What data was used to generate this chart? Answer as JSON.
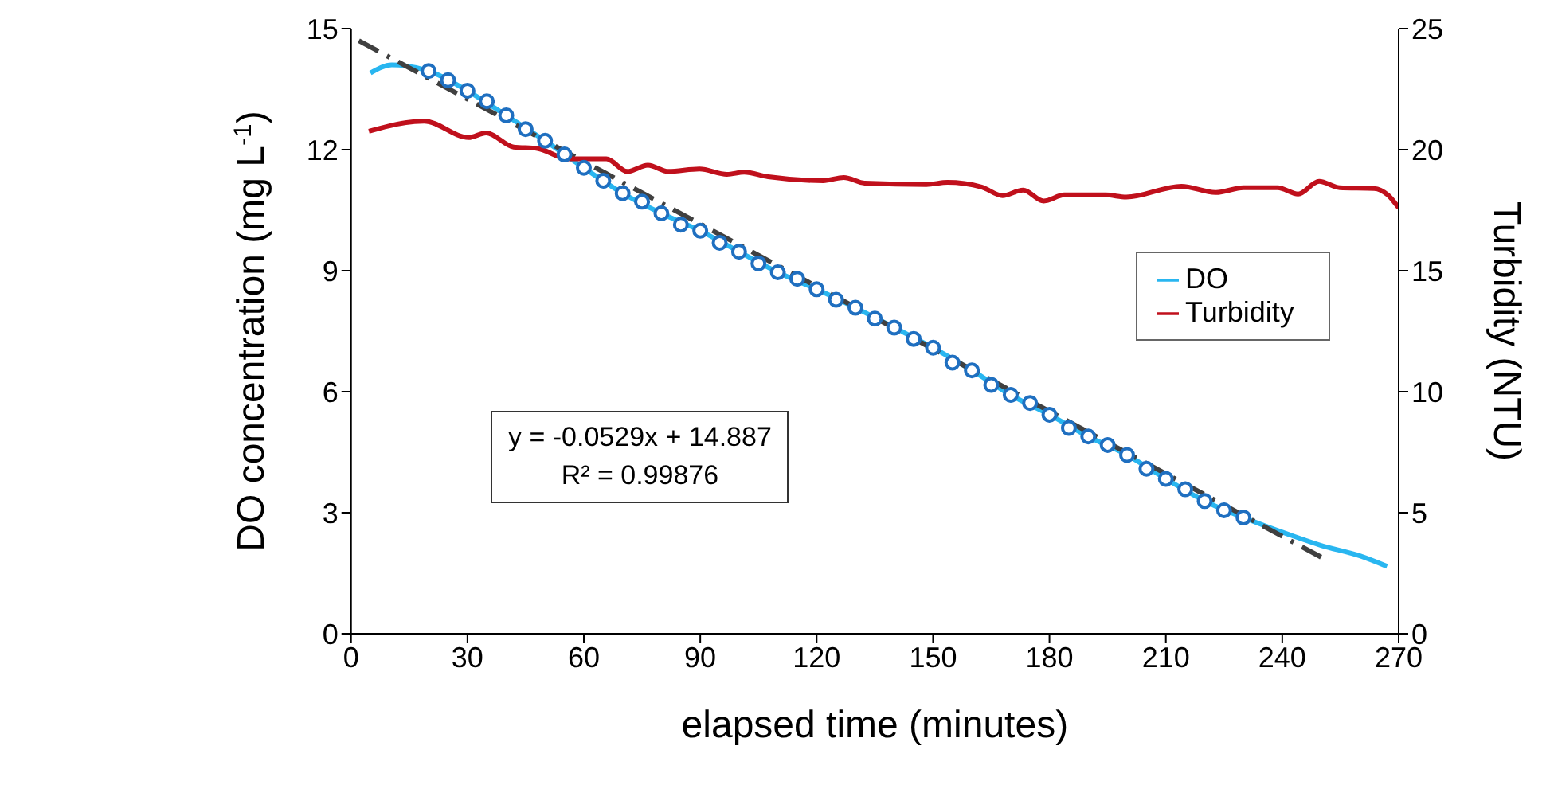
{
  "chart_data": {
    "type": "line",
    "xlabel": "elapsed time (minutes)",
    "ylabel": "DO concentration (mg L$^{-1}$)",
    "y2label": "Turbidity (NTU)",
    "xlim": [
      0,
      270
    ],
    "xticks": [
      0,
      30,
      60,
      90,
      120,
      150,
      180,
      210,
      240,
      270
    ],
    "ylim": [
      0,
      15
    ],
    "yticks": [
      0,
      3,
      6,
      9,
      12,
      15
    ],
    "y2lim": [
      0,
      25
    ],
    "y2ticks": [
      0,
      5,
      10,
      15,
      20,
      25
    ],
    "legend": "right",
    "annotations": [
      "y = -0.0529x + 14.887",
      "R² = 0.99876"
    ],
    "series": [
      {
        "name": "DO",
        "color": "#29b6f0",
        "x": [
          5,
          10.5,
          20,
          30,
          40,
          50,
          60,
          70,
          80,
          90,
          100,
          110,
          120,
          130,
          140,
          150,
          160,
          170,
          180,
          190,
          200,
          210,
          220,
          230,
          242,
          250,
          260,
          267
        ],
        "values": [
          13.9,
          14.1,
          13.95,
          13.46,
          12.85,
          12.22,
          11.55,
          10.92,
          10.42,
          9.99,
          9.47,
          8.96,
          8.54,
          8.08,
          7.59,
          7.09,
          6.53,
          5.92,
          5.43,
          4.89,
          4.43,
          3.84,
          3.29,
          2.88,
          2.45,
          2.19,
          1.93,
          1.67
        ]
      },
      {
        "type": "scatter",
        "marker": "circle",
        "color": "#1f6fc0",
        "x": [
          20,
          25,
          30,
          35,
          40,
          45,
          50,
          55,
          60,
          65,
          70,
          75,
          80,
          85,
          90,
          95,
          100,
          105,
          110,
          115,
          120,
          125,
          130,
          135,
          140,
          145,
          150,
          155,
          160,
          165,
          170,
          175,
          180,
          185,
          190,
          195,
          200,
          205,
          210,
          215,
          220,
          225,
          230
        ],
        "values": [
          13.95,
          13.72,
          13.46,
          13.2,
          12.85,
          12.51,
          12.22,
          11.88,
          11.55,
          11.23,
          10.92,
          10.71,
          10.42,
          10.14,
          9.99,
          9.69,
          9.47,
          9.18,
          8.96,
          8.8,
          8.54,
          8.28,
          8.08,
          7.81,
          7.59,
          7.31,
          7.09,
          6.72,
          6.53,
          6.17,
          5.92,
          5.72,
          5.43,
          5.1,
          4.89,
          4.68,
          4.43,
          4.09,
          3.84,
          3.58,
          3.29,
          3.06,
          2.88
        ]
      },
      {
        "type": "line",
        "line_style": "dashed",
        "color": "#404040",
        "x": [
          2,
          250
        ],
        "values": [
          14.7,
          1.9
        ]
      },
      {
        "name": "Turbidity",
        "axis": "y2",
        "color": "#c0101c",
        "x": [
          4.6,
          18.8,
          30.3,
          34.8,
          41.9,
          48,
          56,
          65.8,
          71.2,
          76.5,
          81.8,
          89.8,
          96.9,
          101.3,
          107.5,
          121.7,
          127,
          132.4,
          148.3,
          153.7,
          162.5,
          167.9,
          173.2,
          178.5,
          183.8,
          194.5,
          199.8,
          214,
          222.9,
          230,
          238.8,
          244.1,
          249.5,
          254.8,
          263.7,
          267.2,
          270
        ],
        "values": [
          20.76,
          21.18,
          20.5,
          20.69,
          20.11,
          20.05,
          19.62,
          19.62,
          19.1,
          19.36,
          19.1,
          19.2,
          18.98,
          19.07,
          18.88,
          18.72,
          18.85,
          18.62,
          18.56,
          18.65,
          18.46,
          18.1,
          18.33,
          17.88,
          18.13,
          18.13,
          18.04,
          18.49,
          18.23,
          18.43,
          18.43,
          18.17,
          18.69,
          18.43,
          18.4,
          18.13,
          17.6
        ]
      }
    ]
  }
}
